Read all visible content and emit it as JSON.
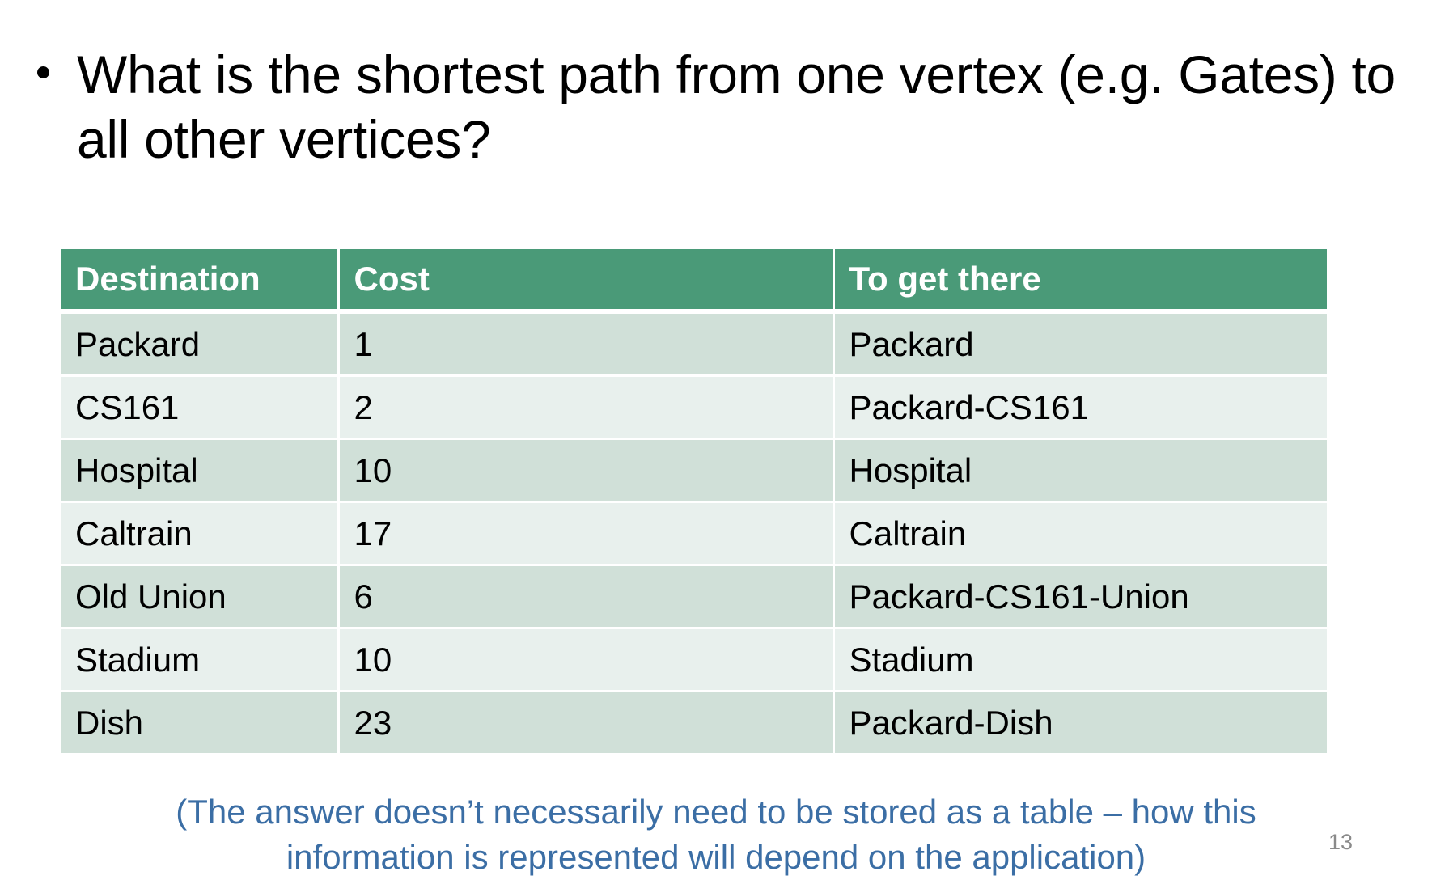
{
  "bullet": {
    "text": "What is the shortest path from one vertex (e.g. Gates) to all other vertices?"
  },
  "table": {
    "headers": [
      "Destination",
      "Cost",
      "To get there"
    ],
    "rows": [
      [
        "Packard",
        "1",
        "Packard"
      ],
      [
        "CS161",
        "2",
        "Packard-CS161"
      ],
      [
        "Hospital",
        "10",
        "Hospital"
      ],
      [
        "Caltrain",
        "17",
        "Caltrain"
      ],
      [
        "Old Union",
        "6",
        "Packard-CS161-Union"
      ],
      [
        "Stadium",
        "10",
        "Stadium"
      ],
      [
        "Dish",
        "23",
        "Packard-Dish"
      ]
    ]
  },
  "footnote": {
    "line1": "(The answer doesn’t necessarily need to be stored as a table – how this",
    "line2": "information is represented will depend on the application)"
  },
  "slide_number": "13",
  "colors": {
    "header_bg": "#4a9a78",
    "row_odd_bg": "#d0e0d8",
    "row_even_bg": "#e8f0ed",
    "footnote_text": "#3b6ea5"
  }
}
